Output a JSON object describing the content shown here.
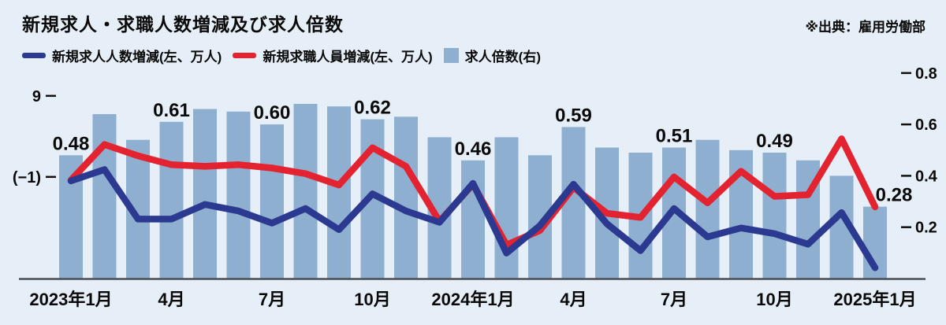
{
  "header": {
    "title": "新規求人・求職人数増減及び求人倍数",
    "source": "※出典：雇用労働部"
  },
  "legend": [
    {
      "key": "openings",
      "label": "新規求人人数増減(左、万人)",
      "color": "#2b3990",
      "swatch": "line"
    },
    {
      "key": "seekers",
      "label": "新規求職人員増減(左、万人)",
      "color": "#e32430",
      "swatch": "line"
    },
    {
      "key": "ratio",
      "label": "求人倍数(右)",
      "color": "#8fafd1",
      "swatch": "square"
    }
  ],
  "chart_data": {
    "type": "combo bar+line",
    "title": "新規求人・求職人数増減及び求人倍数",
    "categories": [
      "2023-01",
      "2023-02",
      "2023-03",
      "2023-04",
      "2023-05",
      "2023-06",
      "2023-07",
      "2023-08",
      "2023-09",
      "2023-10",
      "2023-11",
      "2023-12",
      "2024-01",
      "2024-02",
      "2024-03",
      "2024-04",
      "2024-05",
      "2024-06",
      "2024-07",
      "2024-08",
      "2024-09",
      "2024-10",
      "2024-11",
      "2024-12",
      "2025-01"
    ],
    "x_ticks": [
      {
        "index": 0,
        "label": "2023年1月"
      },
      {
        "index": 3,
        "label": "4月"
      },
      {
        "index": 6,
        "label": "7月"
      },
      {
        "index": 9,
        "label": "10月"
      },
      {
        "index": 12,
        "label": "2024年1月"
      },
      {
        "index": 15,
        "label": "4月"
      },
      {
        "index": 18,
        "label": "7月"
      },
      {
        "index": 21,
        "label": "10月"
      },
      {
        "index": 24,
        "label": "2025年1月"
      }
    ],
    "series": [
      {
        "key": "openings",
        "name": "新規求人人数増減(左、万人)",
        "type": "line",
        "axis": "left",
        "color": "#2b3990",
        "values": [
          -1.5,
          -0.1,
          -6.2,
          -6.2,
          -4.4,
          -5.2,
          -6.7,
          -4.9,
          -7.5,
          -3.1,
          -5.2,
          -6.6,
          -1.8,
          -10.4,
          -7.0,
          -1.9,
          -6.8,
          -10.1,
          -4.9,
          -8.4,
          -7.3,
          -8.0,
          -9.3,
          -5.4,
          -12.2
        ]
      },
      {
        "key": "seekers",
        "name": "新規求職人員増減(左、万人)",
        "type": "line",
        "axis": "left",
        "color": "#e32430",
        "values": [
          -1.4,
          3.0,
          1.6,
          0.5,
          0.3,
          0.5,
          0.1,
          -0.6,
          -2.0,
          2.6,
          0.3,
          -6.5,
          -1.9,
          -9.4,
          -7.6,
          -2.3,
          -5.5,
          -6.0,
          -1.0,
          -4.2,
          -0.3,
          -3.4,
          -3.2,
          3.7,
          -4.7
        ]
      },
      {
        "key": "ratio",
        "name": "求人倍数(右)",
        "type": "bar",
        "axis": "right",
        "color": "#8fafd1",
        "values": [
          0.48,
          0.64,
          0.54,
          0.61,
          0.66,
          0.65,
          0.6,
          0.68,
          0.67,
          0.62,
          0.63,
          0.55,
          0.46,
          0.55,
          0.48,
          0.59,
          0.51,
          0.49,
          0.51,
          0.54,
          0.5,
          0.49,
          0.46,
          0.4,
          0.28
        ],
        "labeled_points": [
          {
            "index": 0,
            "label": "0.48"
          },
          {
            "index": 3,
            "label": "0.61"
          },
          {
            "index": 6,
            "label": "0.60"
          },
          {
            "index": 9,
            "label": "0.62"
          },
          {
            "index": 12,
            "label": "0.46"
          },
          {
            "index": 15,
            "label": "0.59"
          },
          {
            "index": 18,
            "label": "0.51"
          },
          {
            "index": 21,
            "label": "0.49"
          },
          {
            "index": 24,
            "label": "0.28"
          }
        ]
      }
    ],
    "left_axis": {
      "ticks": [
        {
          "value": 9,
          "label": "9"
        },
        {
          "value": -1,
          "label": "(−1)"
        }
      ],
      "range": [
        -13.5,
        12.0
      ]
    },
    "right_axis": {
      "ticks": [
        {
          "value": 0.8,
          "label": "0.8"
        },
        {
          "value": 0.6,
          "label": "0.6"
        },
        {
          "value": 0.4,
          "label": "0.4"
        },
        {
          "value": 0.2,
          "label": "0.2"
        }
      ],
      "range": [
        0,
        0.88
      ]
    },
    "colors": {
      "background": "#e6eff7",
      "axis_line": "#4a4f54",
      "tick_mark": "#111111",
      "label_text": "#0a0a0a"
    },
    "legend_position": "top",
    "grid": false
  }
}
